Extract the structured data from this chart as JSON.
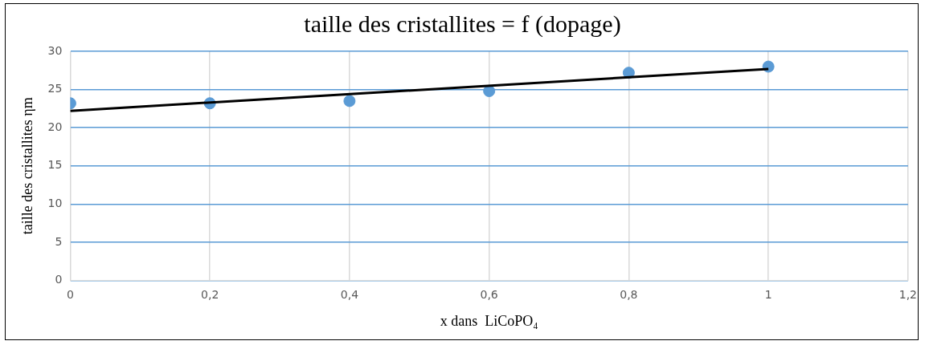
{
  "chart_data": {
    "type": "scatter",
    "title": "taille des cristallites = f (dopage)",
    "xlabel": "x dans  LiCoPO₄",
    "ylabel": "taille des cristallites ηm",
    "series": [
      {
        "color": "#5b9bd5",
        "marker": "circle",
        "x": [
          0,
          0.2,
          0.4,
          0.6,
          0.8,
          1
        ],
        "values": [
          23.2,
          23.2,
          23.5,
          24.8,
          27.2,
          28.0
        ]
      },
      {
        "type": "line",
        "color": "#000000",
        "x": [
          0,
          1
        ],
        "values": [
          22.2,
          27.7
        ]
      }
    ],
    "xlim": [
      0,
      1.2
    ],
    "xticks": [
      0,
      {
        "value": 0.2,
        "label": "0,2"
      },
      {
        "value": 0.4,
        "label": "0,4"
      },
      {
        "value": 0.6,
        "label": "0,6"
      },
      {
        "value": 0.8,
        "label": "0,8"
      },
      1,
      {
        "value": 1.2,
        "label": "1,2"
      }
    ],
    "ylim": [
      0,
      30
    ],
    "yticks": [
      0,
      5,
      10,
      15,
      20,
      25,
      30
    ],
    "grid": true,
    "legend": false
  }
}
